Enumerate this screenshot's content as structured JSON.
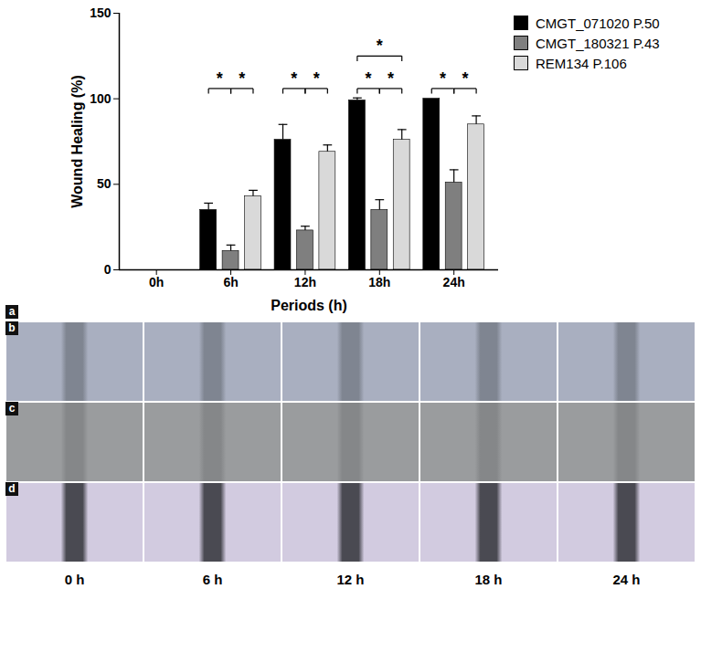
{
  "chart_data": {
    "type": "bar",
    "categories": [
      "0h",
      "6h",
      "12h",
      "18h",
      "24h"
    ],
    "series": [
      {
        "name": "CMGT_071020 P.50",
        "color": "#000000",
        "values": [
          0,
          35,
          76,
          99,
          100
        ],
        "errors": [
          0,
          4,
          9,
          1.5,
          0
        ]
      },
      {
        "name": "CMGT_180321 P.43",
        "color": "#7f7f7f",
        "values": [
          0,
          11,
          23,
          35,
          51
        ],
        "errors": [
          0,
          3.5,
          2.5,
          6,
          7.5
        ]
      },
      {
        "name": "REM134 P.106",
        "color": "#d9d9d9",
        "values": [
          0,
          43,
          69,
          76,
          85
        ],
        "errors": [
          0,
          3.5,
          4,
          6,
          5
        ]
      }
    ],
    "y_label": "Wound Healing (%)",
    "x_label": "Periods (h)",
    "ylim": [
      0,
      150
    ],
    "yticks": [
      0,
      50,
      100,
      150
    ],
    "legend": "top-right",
    "annotations": [
      {
        "category": "6h",
        "from": 0,
        "to": 1,
        "y": 106,
        "label": "*"
      },
      {
        "category": "6h",
        "from": 1,
        "to": 2,
        "y": 106,
        "label": "*"
      },
      {
        "category": "12h",
        "from": 0,
        "to": 1,
        "y": 106,
        "label": "*"
      },
      {
        "category": "12h",
        "from": 1,
        "to": 2,
        "y": 106,
        "label": "*"
      },
      {
        "category": "18h",
        "from": 0,
        "to": 1,
        "y": 106,
        "label": "*"
      },
      {
        "category": "18h",
        "from": 1,
        "to": 2,
        "y": 106,
        "label": "*"
      },
      {
        "category": "18h",
        "from": 0,
        "to": 2,
        "y": 125,
        "label": "*"
      },
      {
        "category": "24h",
        "from": 0,
        "to": 1,
        "y": 106,
        "label": "*"
      },
      {
        "category": "24h",
        "from": 1,
        "to": 2,
        "y": 106,
        "label": "*"
      }
    ]
  },
  "image_panels": {
    "chart_label": "a",
    "row_labels": [
      "b",
      "c",
      "d"
    ],
    "column_labels": [
      "0 h",
      "6 h",
      "12 h",
      "18 h",
      "24 h"
    ]
  }
}
